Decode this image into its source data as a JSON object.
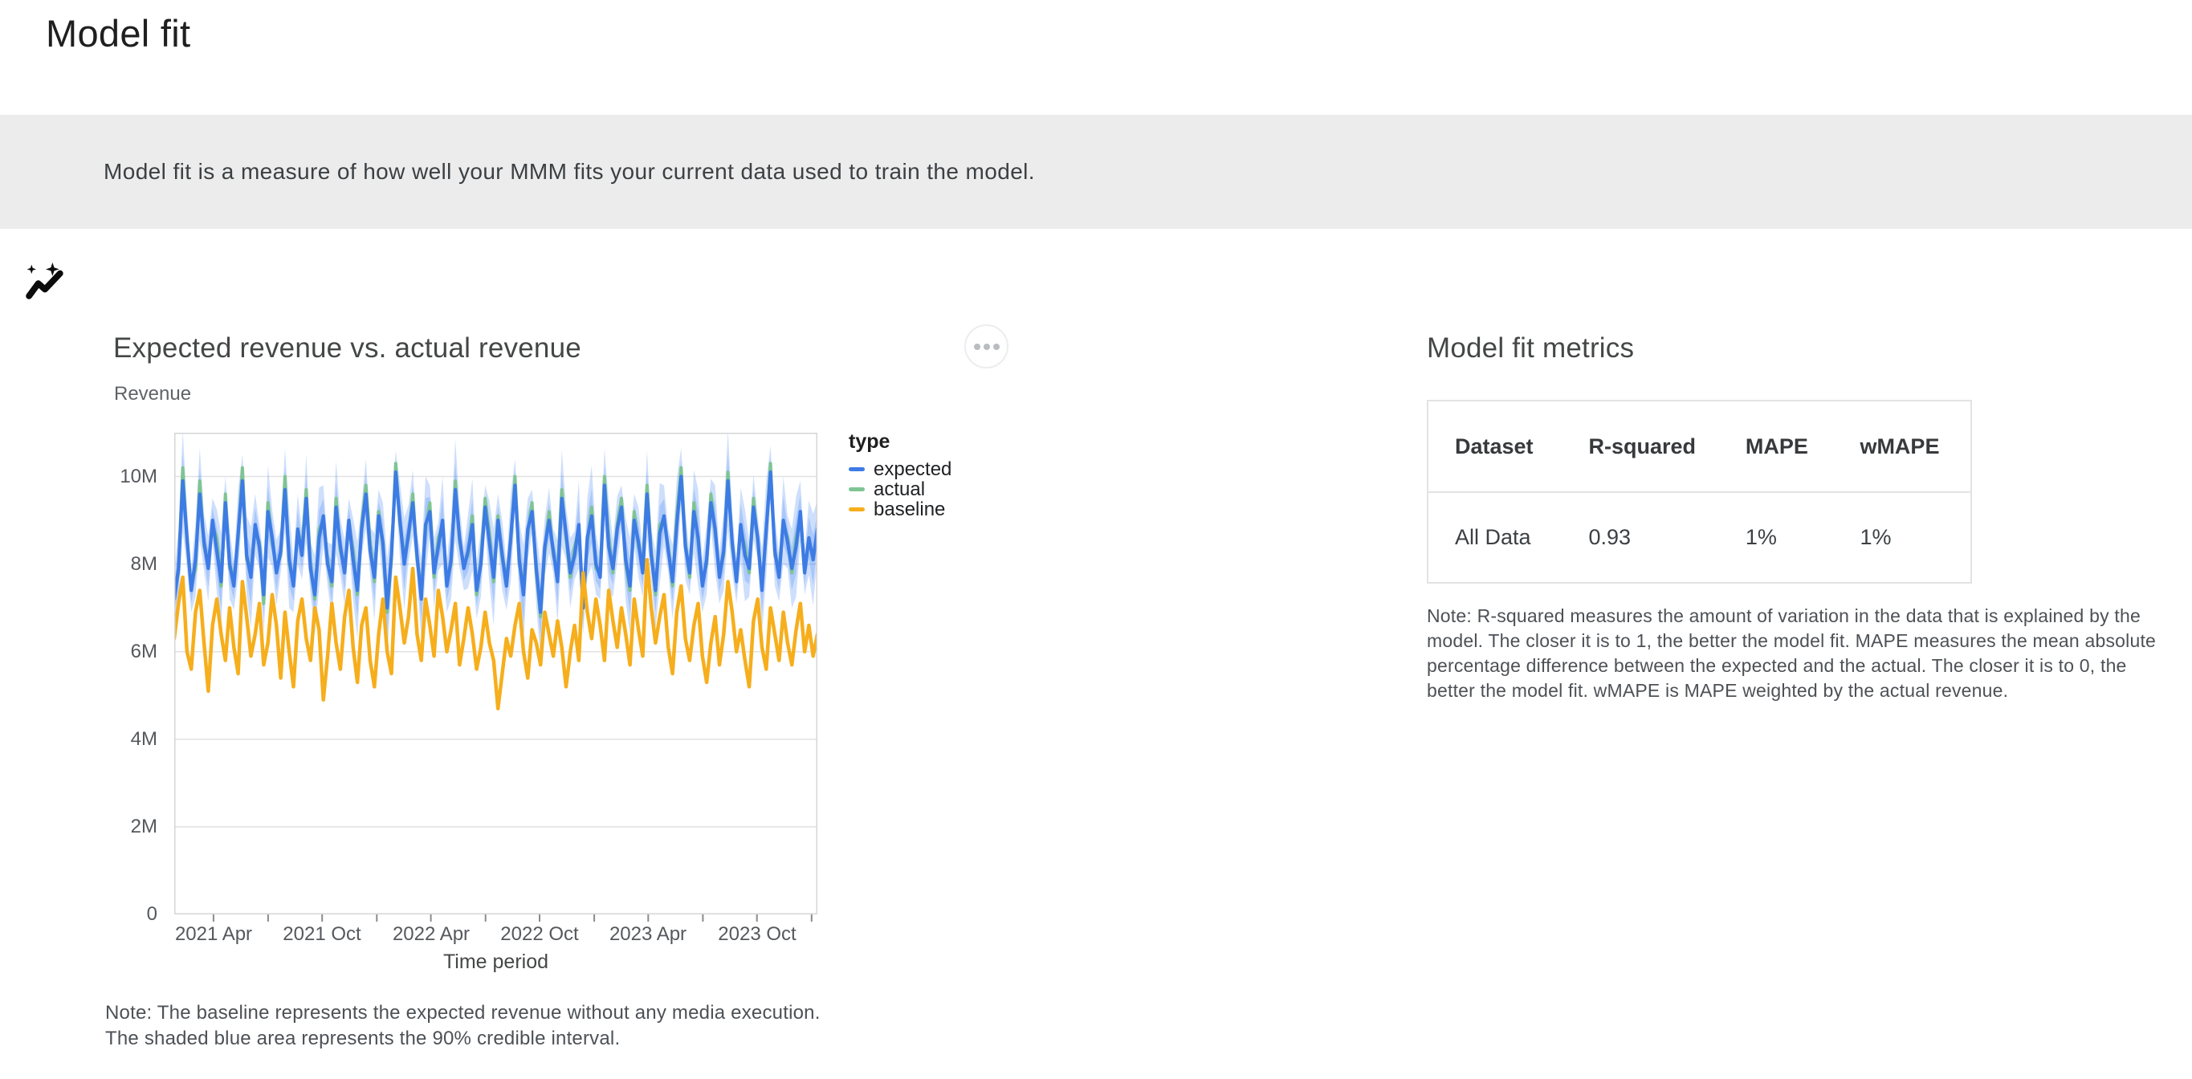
{
  "page": {
    "title": "Model fit"
  },
  "banner": {
    "icon": "model-fit-sparkline-icon",
    "text": "Model fit is a measure of how well your MMM fits your current data used to train the model."
  },
  "chart_card": {
    "title": "Expected revenue vs. actual revenue",
    "subtitle": "Revenue",
    "menu_icon": "ellipsis-icon",
    "note_line1": "Note: The baseline represents the expected revenue without any media execution.",
    "note_line2": "The shaded blue area represents the 90% credible interval."
  },
  "legend": {
    "title": "type",
    "items": [
      {
        "label": "expected",
        "color": "#3D7BE5"
      },
      {
        "label": "actual",
        "color": "#7FC493"
      },
      {
        "label": "baseline",
        "color": "#F6AE1C"
      }
    ]
  },
  "metrics": {
    "title": "Model fit metrics",
    "table": {
      "headers": [
        "Dataset",
        "R-squared",
        "MAPE",
        "wMAPE"
      ],
      "rows": [
        [
          "All Data",
          "0.93",
          "1%",
          "1%"
        ]
      ]
    },
    "note": "Note: R-squared measures the amount of variation in the data that is explained by the model. The closer it is to 1, the better the model fit. MAPE measures the mean absolute percentage difference between the expected and the actual. The closer it is to 0, the better the model fit. wMAPE is MAPE weighted by the actual revenue."
  },
  "colors": {
    "banner_bg": "#ECECEC",
    "band_fill": "#4285F4",
    "grid_line": "#e1e1e1",
    "plot_border": "#d6d6d6",
    "axis_tick": "#888c90"
  },
  "chart_data": {
    "type": "line",
    "title": "Expected revenue vs. actual revenue",
    "xlabel": "Time period",
    "ylabel": "Revenue",
    "x_range": [
      "2021 Feb",
      "2024 Jan"
    ],
    "x_frequency": "weekly",
    "ylim_millions": [
      0,
      11
    ],
    "grid": true,
    "legend_position": "right",
    "band_label": "90% credible interval",
    "y_ticks": [
      {
        "v": 0,
        "label": "0"
      },
      {
        "v": 2,
        "label": "2M"
      },
      {
        "v": 4,
        "label": "4M"
      },
      {
        "v": 6,
        "label": "6M"
      },
      {
        "v": 8,
        "label": "8M"
      },
      {
        "v": 10,
        "label": "10M"
      }
    ],
    "x_ticks": [
      {
        "f": 0.061,
        "label": "2021 Apr"
      },
      {
        "f": 0.146,
        "label": ""
      },
      {
        "f": 0.23,
        "label": "2021 Oct"
      },
      {
        "f": 0.315,
        "label": ""
      },
      {
        "f": 0.399,
        "label": "2022 Apr"
      },
      {
        "f": 0.484,
        "label": ""
      },
      {
        "f": 0.568,
        "label": "2022 Oct"
      },
      {
        "f": 0.653,
        "label": ""
      },
      {
        "f": 0.737,
        "label": "2023 Apr"
      },
      {
        "f": 0.822,
        "label": ""
      },
      {
        "f": 0.906,
        "label": "2023 Oct"
      },
      {
        "f": 0.991,
        "label": ""
      }
    ],
    "series": [
      {
        "name": "expected",
        "color": "#3D7BE5",
        "values_millions": [
          7.2,
          7.9,
          9.9,
          8.6,
          7.4,
          8.1,
          9.6,
          8.5,
          7.9,
          9.0,
          8.3,
          7.6,
          9.4,
          8.0,
          7.5,
          8.7,
          9.9,
          8.2,
          7.7,
          8.9,
          8.4,
          7.3,
          9.2,
          8.6,
          7.8,
          8.3,
          9.7,
          8.1,
          7.5,
          8.8,
          8.2,
          9.5,
          7.9,
          7.3,
          8.6,
          9.1,
          8.0,
          7.6,
          9.3,
          8.4,
          7.8,
          9.0,
          8.1,
          7.4,
          8.8,
          9.6,
          8.3,
          7.7,
          9.1,
          8.5,
          7.0,
          8.2,
          10.1,
          9.0,
          8.0,
          8.7,
          9.4,
          8.2,
          7.2,
          8.9,
          9.2,
          7.8,
          8.4,
          9.0,
          7.5,
          8.1,
          9.7,
          8.6,
          7.9,
          8.3,
          8.9,
          7.4,
          8.0,
          9.3,
          8.5,
          7.7,
          9.0,
          8.2,
          7.5,
          8.6,
          9.8,
          8.1,
          7.3,
          8.8,
          9.2,
          7.9,
          6.9,
          8.4,
          9.0,
          8.3,
          7.6,
          9.5,
          8.7,
          7.8,
          8.2,
          8.9,
          7.0,
          8.6,
          9.1,
          8.0,
          7.7,
          9.8,
          8.4,
          7.9,
          8.8,
          9.3,
          8.1,
          7.5,
          9.0,
          8.5,
          7.8,
          9.6,
          8.2,
          7.4,
          8.7,
          9.1,
          8.3,
          7.6,
          8.9,
          10.0,
          8.4,
          7.8,
          9.2,
          8.6,
          7.5,
          8.1,
          9.4,
          8.8,
          7.7,
          8.3,
          9.9,
          8.5,
          7.6,
          8.9,
          8.2,
          7.9,
          9.3,
          8.6,
          7.4,
          8.8,
          10.1,
          8.3,
          7.7,
          9.0,
          8.5,
          7.9,
          8.4,
          9.2,
          7.8,
          8.6,
          8.1,
          8.8
        ]
      },
      {
        "name": "actual",
        "color": "#7FC493",
        "values_millions": [
          7.3,
          7.8,
          10.2,
          8.5,
          7.5,
          7.9,
          9.9,
          8.4,
          8.0,
          8.9,
          8.6,
          7.5,
          9.6,
          7.9,
          7.7,
          8.6,
          10.2,
          8.1,
          7.9,
          8.8,
          8.5,
          7.1,
          9.4,
          8.5,
          7.9,
          8.2,
          10.0,
          8.0,
          7.6,
          8.7,
          8.4,
          9.7,
          8.0,
          7.2,
          8.8,
          9.0,
          8.1,
          7.5,
          9.5,
          8.3,
          7.9,
          8.9,
          8.3,
          7.3,
          8.9,
          9.8,
          8.5,
          7.6,
          9.2,
          8.4,
          6.9,
          8.1,
          10.3,
          8.9,
          8.2,
          8.6,
          9.6,
          8.1,
          7.4,
          8.8,
          9.4,
          7.7,
          8.6,
          8.9,
          7.6,
          8.0,
          9.9,
          8.5,
          8.0,
          8.2,
          9.1,
          7.3,
          8.1,
          9.5,
          8.7,
          7.6,
          9.1,
          8.1,
          7.7,
          8.5,
          10.0,
          8.0,
          7.5,
          8.7,
          9.4,
          7.8,
          6.8,
          8.3,
          9.2,
          8.2,
          7.8,
          9.7,
          8.6,
          7.7,
          8.4,
          8.8,
          7.1,
          8.5,
          9.3,
          7.9,
          7.8,
          10.0,
          8.6,
          7.8,
          8.9,
          9.5,
          8.0,
          7.4,
          9.2,
          8.4,
          8.0,
          9.8,
          8.3,
          7.3,
          8.9,
          9.0,
          8.4,
          7.5,
          9.1,
          10.2,
          8.5,
          7.7,
          9.4,
          8.5,
          7.6,
          8.0,
          9.6,
          8.7,
          7.8,
          8.2,
          10.1,
          8.4,
          7.7,
          8.8,
          8.4,
          7.8,
          9.5,
          8.5,
          7.5,
          8.7,
          10.3,
          8.2,
          7.9,
          8.9,
          8.6,
          7.8,
          8.6,
          9.1,
          7.9,
          8.5,
          8.2,
          8.7
        ]
      },
      {
        "name": "baseline",
        "color": "#F6AE1C",
        "values_millions": [
          6.3,
          7.1,
          7.7,
          6.0,
          5.6,
          6.9,
          7.4,
          6.2,
          5.1,
          6.6,
          7.2,
          6.4,
          5.8,
          7.0,
          6.1,
          5.5,
          7.6,
          6.8,
          5.9,
          6.4,
          7.1,
          5.7,
          6.2,
          7.3,
          6.6,
          5.4,
          6.9,
          6.0,
          5.2,
          6.7,
          7.2,
          6.3,
          5.8,
          7.0,
          6.5,
          4.9,
          5.9,
          7.1,
          6.2,
          5.6,
          6.8,
          7.4,
          6.1,
          5.3,
          6.6,
          7.0,
          5.8,
          5.2,
          6.4,
          7.2,
          6.0,
          5.5,
          7.7,
          7.0,
          6.2,
          6.8,
          7.9,
          6.4,
          5.8,
          7.2,
          6.6,
          5.9,
          7.4,
          6.8,
          6.0,
          6.5,
          7.1,
          5.7,
          6.3,
          7.0,
          6.4,
          5.6,
          6.1,
          6.9,
          6.2,
          5.8,
          4.7,
          5.5,
          6.3,
          5.9,
          6.6,
          7.1,
          6.0,
          5.4,
          6.5,
          6.2,
          5.7,
          6.9,
          6.4,
          5.9,
          6.7,
          6.1,
          5.2,
          6.0,
          6.6,
          5.8,
          7.8,
          6.9,
          6.3,
          7.2,
          6.6,
          5.8,
          7.4,
          6.7,
          6.1,
          7.0,
          6.4,
          5.7,
          7.2,
          6.5,
          5.9,
          8.1,
          7.0,
          6.2,
          6.8,
          7.3,
          6.1,
          5.5,
          6.9,
          7.5,
          6.3,
          5.8,
          6.6,
          7.1,
          5.9,
          5.3,
          6.2,
          6.8,
          5.7,
          6.4,
          7.6,
          6.9,
          6.0,
          6.5,
          5.8,
          5.2,
          6.7,
          7.2,
          6.1,
          5.6,
          7.0,
          6.4,
          5.8,
          6.9,
          6.2,
          5.7,
          6.5,
          7.1,
          6.0,
          6.6,
          5.9,
          6.4
        ]
      }
    ],
    "credible_interval_halfwidth_millions": [
      0.6,
      0.9,
      1.15,
      0.7,
      0.5,
      0.85,
      1.05,
      0.65,
      0.75,
      0.5,
      0.95,
      1.1,
      0.6,
      0.8,
      0.55,
      1.0,
      0.6,
      0.9,
      1.15,
      0.7,
      0.5,
      0.85,
      1.05,
      0.65,
      0.75,
      0.5,
      0.95,
      1.1,
      0.6,
      0.8,
      0.55,
      1.0,
      0.6,
      0.9,
      1.15,
      0.7,
      0.5,
      0.85,
      1.05,
      0.65,
      0.75,
      0.5,
      0.95,
      1.1,
      0.6,
      0.8,
      0.55,
      1.0,
      0.6,
      0.9,
      1.15,
      0.7,
      0.5,
      0.85,
      1.05,
      0.65,
      0.75,
      0.5,
      0.95,
      1.1,
      0.6,
      0.8,
      0.55,
      1.0,
      0.6,
      0.9,
      1.15,
      0.7,
      0.5,
      0.85,
      1.05,
      0.65,
      0.75,
      0.5,
      0.95,
      1.1,
      0.6,
      0.8,
      0.55,
      1.0,
      0.6,
      0.9,
      1.15,
      0.7,
      0.5,
      0.85,
      1.05,
      0.65,
      0.75,
      0.5,
      0.95,
      1.1,
      0.6,
      0.8,
      0.55,
      1.0,
      0.6,
      0.9,
      1.15,
      0.7,
      0.5,
      0.85,
      1.05,
      0.65,
      0.75,
      0.5,
      0.95,
      1.1,
      0.6,
      0.8,
      0.55,
      1.0,
      0.6,
      0.9,
      1.15,
      0.7,
      0.5,
      0.85,
      1.05,
      0.65,
      0.75,
      0.5,
      0.95,
      1.1,
      0.6,
      0.8,
      0.55,
      1.0,
      0.6,
      0.9,
      1.15,
      0.7,
      0.5,
      0.85,
      1.05,
      0.65,
      0.75,
      0.5,
      0.95,
      1.1,
      0.6,
      0.8,
      0.55,
      1.0,
      0.6,
      0.9,
      1.15,
      0.7,
      0.5,
      0.85,
      1.05,
      0.65
    ]
  }
}
